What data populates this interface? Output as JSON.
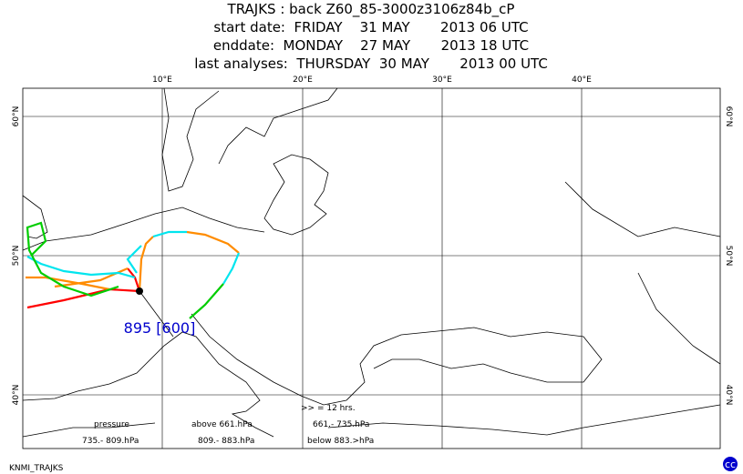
{
  "header": {
    "lines": [
      "TRAJKS : back Z60_85-3000z3106z84b_cP",
      "start date:  FRIDAY    31 MAY       2013 06 UTC",
      "enddate:  MONDAY    27 MAY       2013 18 UTC",
      "last analyses:  THURSDAY  30 MAY       2013 00 UTC"
    ]
  },
  "map": {
    "lon_labels": [
      "10°E",
      "20°E",
      "30°E",
      "40°E"
    ],
    "lat_labels": [
      "60°N",
      "50°N",
      "40°N"
    ],
    "station_label": "895 [600]"
  },
  "legend": {
    "interval": ">> = 12 hrs.",
    "title": "pressure",
    "classes": [
      {
        "label": "above  661.hPa",
        "color": "#ff0000"
      },
      {
        "label": "661.- 735.hPa",
        "color": "#ff8c00"
      },
      {
        "label": "735.- 809.hPa",
        "color": "#00e5ee"
      },
      {
        "label": "809.- 883.hPa",
        "color": "#00cd00"
      },
      {
        "label": "below  883.>hPa",
        "color": "#0000ff"
      }
    ]
  },
  "footer": {
    "text": "KNMI_TRAJKS"
  }
}
